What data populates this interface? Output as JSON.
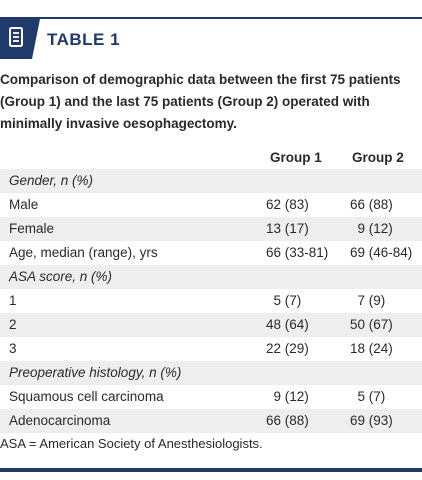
{
  "header": {
    "icon": "document-list-icon",
    "title": "TABLE 1",
    "accent_color": "#1f3a6b"
  },
  "caption": "Comparison of demographic data between the first 75 patients (Group 1) and the last 75 patients (Group 2) operated with minimally invasive oesophagectomy.",
  "columns": {
    "group1": "Group 1",
    "group2": "Group 2"
  },
  "rows": [
    {
      "label": "Gender, n (%)",
      "g1": "",
      "g2": "",
      "section": true
    },
    {
      "label": "Male",
      "g1": "62 (83)",
      "g2": "66 (88)"
    },
    {
      "label": "Female",
      "g1": "13 (17)",
      "g2": "  9 (12)"
    },
    {
      "label": "Age, median (range), yrs",
      "g1": "66 (33-81)",
      "g2": "69 (46-84)"
    },
    {
      "label": "ASA score, n (%)",
      "g1": "",
      "g2": "",
      "section": true
    },
    {
      "label": "1",
      "g1": "  5 (7)",
      "g2": "  7 (9)"
    },
    {
      "label": "2",
      "g1": "48 (64)",
      "g2": "50 (67)"
    },
    {
      "label": "3",
      "g1": "22 (29)",
      "g2": "18 (24)"
    },
    {
      "label": "Preoperative histology, n (%)",
      "g1": "",
      "g2": "",
      "section": true
    },
    {
      "label": "Squamous cell carcinoma",
      "g1": "  9 (12)",
      "g2": "  5 (7)"
    },
    {
      "label": "Adenocarcinoma",
      "g1": "66 (88)",
      "g2": "69 (93)"
    }
  ],
  "footnote": "ASA = American Society of Anesthesiologists."
}
